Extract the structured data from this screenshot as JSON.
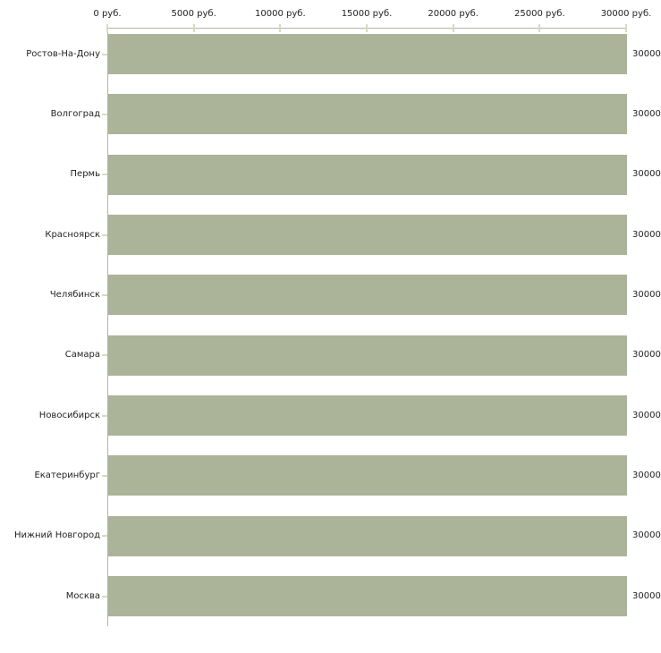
{
  "chart_data": {
    "type": "bar",
    "orientation": "horizontal",
    "title": "",
    "xlabel": "",
    "ylabel": "",
    "xlim": [
      0,
      30000
    ],
    "x_tick_values": [
      0,
      5000,
      10000,
      15000,
      20000,
      25000,
      30000
    ],
    "x_tick_labels": [
      "0 руб.",
      "5000 руб.",
      "10000 руб.",
      "15000 руб.",
      "20000 руб.",
      "25000 руб.",
      "30000 руб."
    ],
    "categories": [
      "Ростов-На-Дону",
      "Волгоград",
      "Пермь",
      "Красноярск",
      "Челябинск",
      "Самара",
      "Новосибирск",
      "Екатеринбург",
      "Нижний Новгород",
      "Москва"
    ],
    "values": [
      30000,
      30000,
      30000,
      30000,
      30000,
      30000,
      30000,
      30000,
      30000,
      30000
    ],
    "value_labels": [
      "30000",
      "30000",
      "30000",
      "30000",
      "30000",
      "30000",
      "30000",
      "30000",
      "30000",
      "30000"
    ],
    "unit": "руб.",
    "grid": false,
    "legend": false,
    "colors": {
      "bar": "#abb399",
      "axis_line": "#b3b3ab",
      "tick": "#d8dabd",
      "text": "#1f1f1f",
      "background": "#ffffff"
    }
  }
}
